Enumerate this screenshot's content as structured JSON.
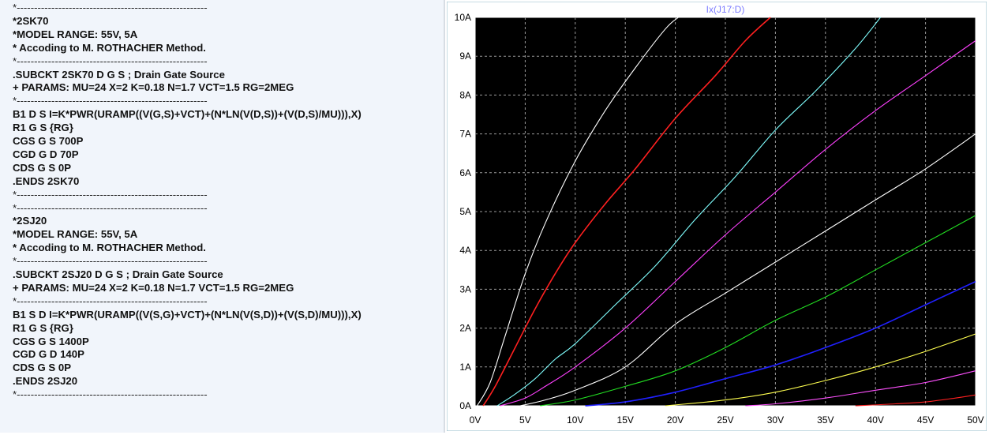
{
  "netlist": {
    "lines": [
      "*-------------------------------------------------------",
      "*2SK70",
      "*MODEL RANGE: 55V, 5A",
      "* Accoding to M. ROTHACHER Method.",
      "*-------------------------------------------------------",
      ".SUBCKT 2SK70 D G S ; Drain Gate Source",
      "+ PARAMS: MU=24 X=2 K=0.18 N=1.7 VCT=1.5 RG=2MEG",
      "*-------------------------------------------------------",
      "B1 D S I=K*PWR(URAMP((V(G,S)+VCT)+(N*LN(V(D,S))+(V(D,S)/MU))),X)",
      "R1 G S {RG}",
      "CGS G S 700P",
      "CGD G D 70P",
      "CDS G S 0P",
      ".ENDS 2SK70",
      "*-------------------------------------------------------",
      "*-------------------------------------------------------",
      "*2SJ20",
      "*MODEL RANGE: 55V, 5A",
      "* Accoding to M. ROTHACHER Method.",
      "*-------------------------------------------------------",
      ".SUBCKT 2SJ20 D G S ; Drain Gate Source",
      "+ PARAMS: MU=24 X=2 K=0.18 N=1.7 VCT=1.5 RG=2MEG",
      "*-------------------------------------------------------",
      "B1 S D I=K*PWR(URAMP((V(S,G)+VCT)+(N*LN(V(S,D))+(V(S,D)/MU))),X)",
      "R1 G S {RG}",
      "CGS G S 1400P",
      "CGD G D 140P",
      "CDS G S 0P",
      ".ENDS 2SJ20",
      "*-------------------------------------------------------"
    ]
  },
  "chart_data": {
    "type": "line",
    "title": "Ix(J17:D)",
    "title_color": "#7b7bff",
    "background": "#000000",
    "grid": true,
    "grid_color": "#9a9a9a",
    "xlim": [
      0,
      50
    ],
    "ylim": [
      0,
      10
    ],
    "x_ticks": [
      0,
      5,
      10,
      15,
      20,
      25,
      30,
      35,
      40,
      45,
      50
    ],
    "y_ticks": [
      0,
      1,
      2,
      3,
      4,
      5,
      6,
      7,
      8,
      9,
      10
    ],
    "x_tick_labels": [
      "0V",
      "5V",
      "10V",
      "15V",
      "20V",
      "25V",
      "30V",
      "35V",
      "40V",
      "45V",
      "50V"
    ],
    "y_tick_labels": [
      "0A",
      "1A",
      "2A",
      "3A",
      "4A",
      "5A",
      "6A",
      "7A",
      "8A",
      "9A",
      "10A"
    ],
    "series": [
      {
        "color": "#ffffff",
        "x": [
          0.2,
          1.5,
          3,
          5,
          7,
          10,
          13,
          16,
          19,
          20.3
        ],
        "y": [
          0,
          0.6,
          1.8,
          3.4,
          4.7,
          6.3,
          7.6,
          8.7,
          9.7,
          10
        ]
      },
      {
        "color": "#ff2020",
        "x": [
          0.8,
          2,
          4,
          6,
          8,
          10,
          13,
          16,
          20,
          24,
          27,
          29.5
        ],
        "y": [
          0,
          0.5,
          1.5,
          2.5,
          3.4,
          4.2,
          5.2,
          6.1,
          7.4,
          8.5,
          9.4,
          10
        ]
      },
      {
        "color": "#80ffff",
        "x": [
          2.2,
          4,
          6,
          8,
          10,
          14,
          18,
          22,
          26,
          30,
          34,
          38,
          40.5
        ],
        "y": [
          0,
          0.3,
          0.7,
          1.2,
          1.6,
          2.6,
          3.6,
          4.8,
          5.9,
          7.1,
          8.1,
          9.2,
          10
        ]
      },
      {
        "color": "#ff40ff",
        "x": [
          2.5,
          5,
          7,
          10,
          15,
          20,
          25,
          30,
          35,
          40,
          45,
          50
        ],
        "y": [
          0,
          0.2,
          0.5,
          1.0,
          2.0,
          3.2,
          4.4,
          5.5,
          6.6,
          7.6,
          8.5,
          9.4
        ]
      },
      {
        "color": "#ffffff",
        "x": [
          4.5,
          7,
          10,
          15,
          20,
          25,
          30,
          35,
          40,
          45,
          50
        ],
        "y": [
          0,
          0.15,
          0.4,
          1.0,
          2.1,
          2.9,
          3.7,
          4.5,
          5.3,
          6.1,
          7.0
        ]
      },
      {
        "color": "#22dd22",
        "x": [
          6.5,
          10,
          15,
          20,
          25,
          30,
          35,
          40,
          45,
          50
        ],
        "y": [
          0,
          0.15,
          0.5,
          0.9,
          1.5,
          2.2,
          2.8,
          3.5,
          4.2,
          4.9
        ]
      },
      {
        "color": "#2020ff",
        "x": [
          11,
          15,
          20,
          25,
          30,
          35,
          40,
          45,
          50
        ],
        "y": [
          0,
          0.1,
          0.35,
          0.7,
          1.05,
          1.5,
          2.0,
          2.6,
          3.2
        ]
      },
      {
        "color": "#ffff50",
        "x": [
          19,
          25,
          30,
          35,
          40,
          45,
          50
        ],
        "y": [
          0,
          0.15,
          0.35,
          0.65,
          1.0,
          1.4,
          1.85
        ]
      },
      {
        "color": "#ff50ff",
        "x": [
          27,
          30,
          35,
          40,
          45,
          50
        ],
        "y": [
          0,
          0.05,
          0.2,
          0.4,
          0.6,
          0.9
        ]
      },
      {
        "color": "#ff2020",
        "x": [
          38,
          42,
          45,
          48,
          50
        ],
        "y": [
          0,
          0.05,
          0.1,
          0.2,
          0.28
        ]
      }
    ]
  }
}
